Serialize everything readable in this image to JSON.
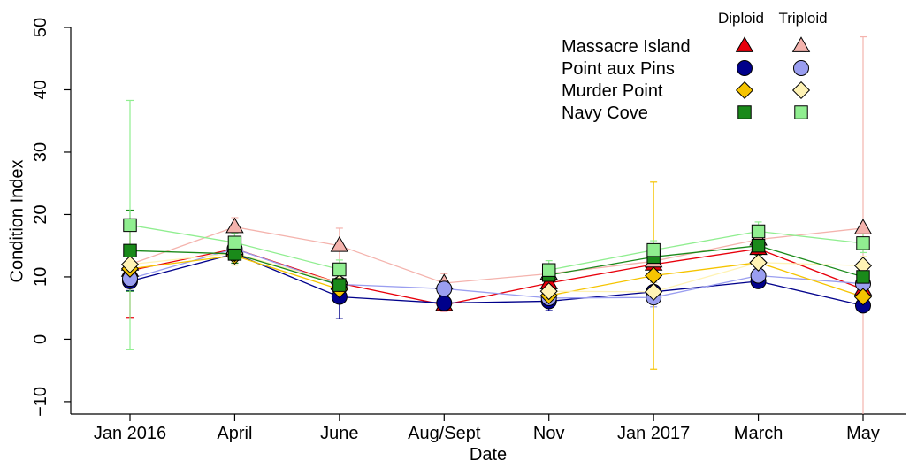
{
  "chart_data": {
    "type": "line",
    "x_label": "Date",
    "y_label": "Condition Index",
    "categories": [
      "Jan 2016",
      "April",
      "June",
      "Aug/Sept",
      "Nov",
      "Jan 2017",
      "March",
      "May"
    ],
    "ylim": [
      -12,
      50
    ],
    "yticks": [
      {
        "value": -10,
        "label": "−10"
      },
      0,
      10,
      20,
      30,
      40,
      50
    ],
    "legend": {
      "position": "upper right",
      "columns": [
        "Diploid",
        "Triploid"
      ]
    },
    "series": [
      {
        "name": "Massacre Island",
        "group": "Diploid",
        "marker": "triangle",
        "color": "#e8000b",
        "values": [
          11,
          14.5,
          9,
          5.5,
          9,
          12,
          14.5,
          8
        ],
        "errors": [
          7.5,
          1.5,
          1.5,
          1,
          1.5,
          1.5,
          1.5,
          1.5
        ]
      },
      {
        "name": "Massacre Island",
        "group": "Triploid",
        "marker": "triangle",
        "color": "#f4b3ad",
        "values": [
          12,
          18,
          15,
          9,
          10.5,
          12.5,
          16,
          17.8
        ],
        "errors": [
          1.5,
          1.5,
          2.8,
          1.5,
          1.5,
          1.5,
          1.5,
          30.7
        ]
      },
      {
        "name": "Point aux Pins",
        "group": "Diploid",
        "marker": "circle",
        "color": "#00008b",
        "values": [
          9.3,
          13.7,
          6.8,
          5.8,
          6.1,
          7.6,
          9.3,
          5.4
        ],
        "errors": [
          1.5,
          1.5,
          3.5,
          1,
          1.5,
          1.5,
          1,
          1
        ]
      },
      {
        "name": "Point aux Pins",
        "group": "Triploid",
        "marker": "circle",
        "color": "#9a9ef0",
        "values": [
          9.7,
          14.5,
          8.8,
          8.1,
          6.6,
          6.7,
          10.2,
          8.9
        ],
        "errors": [
          1.5,
          1.5,
          1.5,
          1,
          1,
          1.5,
          1.5,
          1.5
        ]
      },
      {
        "name": "Murder Point",
        "group": "Diploid",
        "marker": "diamond",
        "color": "#f5c400",
        "values": [
          11.3,
          13.4,
          8,
          null,
          7,
          10.2,
          12.3,
          6.8
        ],
        "errors": [
          1.5,
          1.5,
          1.5,
          null,
          1,
          15,
          1.5,
          1.5
        ]
      },
      {
        "name": "Murder Point",
        "group": "Triploid",
        "marker": "diamond",
        "color": "#fff3b5",
        "values": [
          12,
          13.8,
          9,
          null,
          7.7,
          7.6,
          12.3,
          11.8
        ],
        "errors": [
          1.5,
          1.5,
          1.5,
          null,
          1,
          1.5,
          1.5,
          1.5
        ]
      },
      {
        "name": "Navy Cove",
        "group": "Diploid",
        "marker": "square",
        "color": "#1a8a1a",
        "values": [
          14.2,
          13.7,
          8.7,
          null,
          10.3,
          13.2,
          15,
          10
        ],
        "errors": [
          6.5,
          1.5,
          1.5,
          null,
          1,
          1.5,
          1.5,
          1.5
        ]
      },
      {
        "name": "Navy Cove",
        "group": "Triploid",
        "marker": "square",
        "color": "#90ee90",
        "values": [
          18.3,
          15.5,
          11.2,
          null,
          11.1,
          14.3,
          17.3,
          15.4
        ],
        "errors": [
          20,
          1.5,
          1.5,
          null,
          1.5,
          1.5,
          1.5,
          1.5
        ]
      }
    ]
  }
}
